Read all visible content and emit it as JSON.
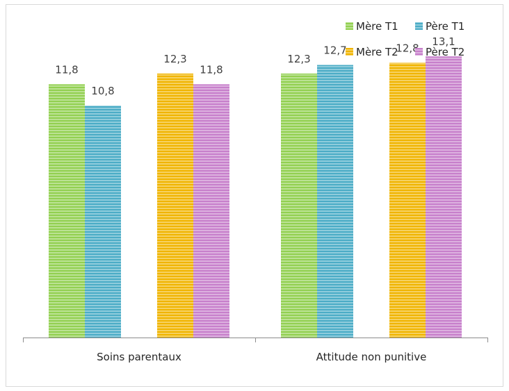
{
  "chart_data": {
    "type": "bar",
    "categories": [
      "Soins parentaux",
      "Attitude non punitive"
    ],
    "series": [
      {
        "name": "Mère T1",
        "color": "#92d050",
        "values": [
          11.8,
          12.3
        ],
        "labels": [
          "11,8",
          "12,3"
        ]
      },
      {
        "name": "Père T1",
        "color": "#4bacc6",
        "values": [
          10.8,
          12.7
        ],
        "labels": [
          "10,8",
          "12,7"
        ]
      },
      {
        "name": "Mère T2",
        "color": "#f0b400",
        "values": [
          12.3,
          12.8
        ],
        "labels": [
          "12,3",
          "12,8"
        ]
      },
      {
        "name": "Père T2",
        "color": "#c77fcb",
        "values": [
          11.8,
          13.1
        ],
        "labels": [
          "11,8",
          "13,1"
        ]
      }
    ],
    "ylim": [
      0,
      15.5
    ],
    "grid": false,
    "legend_position": "top-right",
    "title": "",
    "xlabel": "",
    "ylabel": ""
  }
}
